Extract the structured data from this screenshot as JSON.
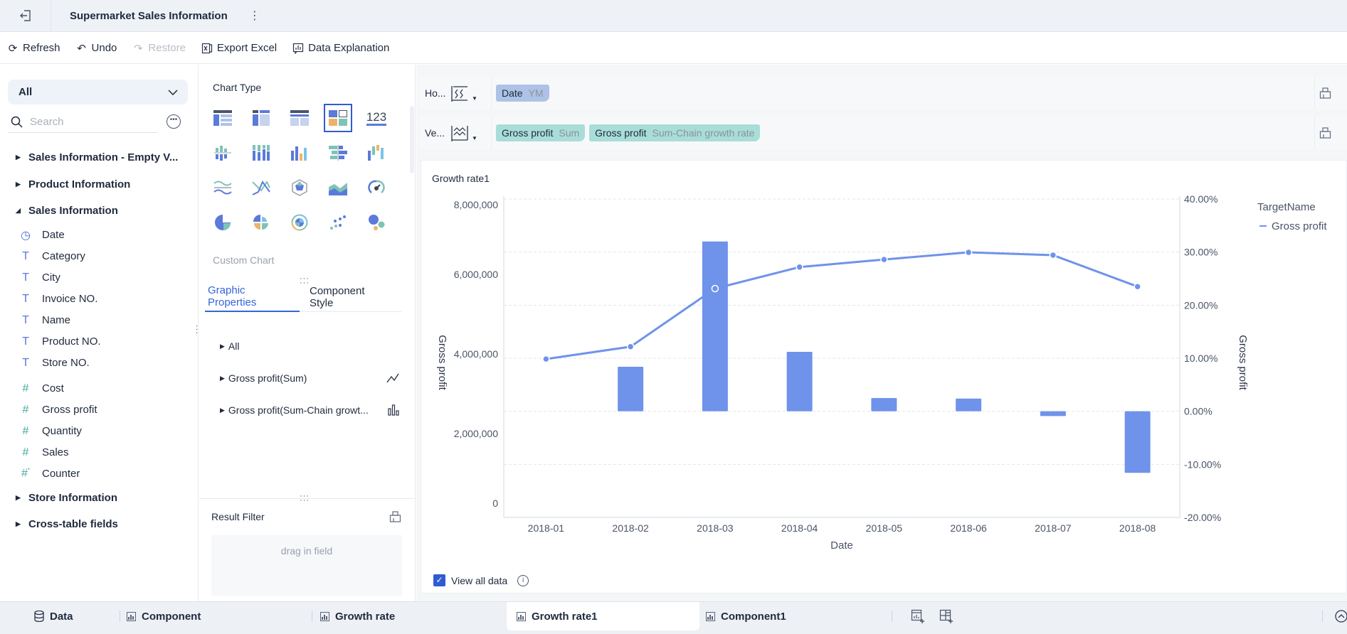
{
  "window": {
    "title": "Supermarket Sales Information"
  },
  "toolbar": {
    "refresh": "Refresh",
    "undo": "Undo",
    "restore": "Restore",
    "export_excel": "Export Excel",
    "data_explanation": "Data Explanation"
  },
  "left_panel": {
    "selector_value": "All",
    "search_placeholder": "Search",
    "groups": [
      {
        "label": "Sales Information - Empty V...",
        "expanded": false
      },
      {
        "label": "Product Information",
        "expanded": false
      },
      {
        "label": "Sales Information",
        "expanded": true
      },
      {
        "label": "Store Information",
        "expanded": false
      },
      {
        "label": "Cross-table fields",
        "expanded": false
      }
    ],
    "fields": [
      {
        "label": "Date",
        "type": "date"
      },
      {
        "label": "Category",
        "type": "text"
      },
      {
        "label": "City",
        "type": "text"
      },
      {
        "label": "Invoice NO.",
        "type": "text"
      },
      {
        "label": "Name",
        "type": "text"
      },
      {
        "label": "Product NO.",
        "type": "text"
      },
      {
        "label": "Store NO.",
        "type": "text"
      },
      {
        "label": "Cost",
        "type": "number"
      },
      {
        "label": "Gross profit",
        "type": "number"
      },
      {
        "label": "Quantity",
        "type": "number"
      },
      {
        "label": "Sales",
        "type": "number"
      },
      {
        "label": "Counter",
        "type": "counter"
      }
    ]
  },
  "chart_type_panel": {
    "title": "Chart Type",
    "number_icon_text": "123",
    "custom_chart": "Custom Chart",
    "tabs": [
      "Graphic Properties",
      "Component Style"
    ],
    "active_tab": 0,
    "properties": [
      {
        "label": "All"
      },
      {
        "label": "Gross profit(Sum)",
        "icon": "line-chart-icon"
      },
      {
        "label": "Gross profit(Sum-Chain growt...",
        "icon": "bar-chart-icon"
      }
    ],
    "result_filter": {
      "title": "Result Filter",
      "placeholder": "drag in field"
    }
  },
  "shelves": {
    "horizontal": {
      "label": "Ho...",
      "pills": [
        {
          "name": "Date",
          "sub": "YM"
        }
      ]
    },
    "vertical": {
      "label": "Ve...",
      "pills": [
        {
          "name": "Gross profit",
          "sub": "Sum"
        },
        {
          "name": "Gross profit",
          "sub": "Sum-Chain growth rate"
        }
      ]
    }
  },
  "chart_card": {
    "title": "Growth rate1",
    "view_all_data": "View all data",
    "view_all_checked": true
  },
  "chart_data": {
    "type": "combo (bar + line)",
    "title": "Growth rate1",
    "categories": [
      "2018-01",
      "2018-02",
      "2018-03",
      "2018-04",
      "2018-05",
      "2018-06",
      "2018-07",
      "2018-08"
    ],
    "xlabel": "Date",
    "ylabel_left": "Gross profit",
    "ylabel_right": "Gross profit",
    "left_axis": {
      "ticks": [
        "0",
        "2,000,000",
        "4,000,000",
        "6,000,000",
        "8,000,000"
      ],
      "range": [
        0,
        8000000
      ]
    },
    "right_axis": {
      "ticks": [
        "-20.00%",
        "-10.00%",
        "0.00%",
        "10.00%",
        "20.00%",
        "30.00%",
        "40.00%"
      ],
      "range": [
        -20,
        40
      ]
    },
    "series": [
      {
        "name": "Gross profit (Sum)",
        "type": "line",
        "axis": "left",
        "values": [
          3980000,
          4290000,
          5750000,
          6290000,
          6480000,
          6660000,
          6590000,
          5800000
        ]
      },
      {
        "name": "Gross profit (Sum-Chain growth rate)",
        "type": "bar",
        "axis": "right",
        "unit": "%",
        "values": [
          null,
          8.4,
          32.0,
          11.2,
          2.5,
          2.4,
          -0.9,
          -11.6
        ]
      }
    ],
    "legend": {
      "title": "TargetName",
      "items": [
        "Gross profit"
      ],
      "position": "right-top"
    },
    "grid": "dashed horizontal",
    "color": "#6f93ea"
  },
  "bottom_tabs": [
    {
      "label": "Data",
      "icon": "database-icon"
    },
    {
      "label": "Component",
      "icon": "chart-icon"
    },
    {
      "label": "Growth rate",
      "icon": "chart-icon"
    },
    {
      "label": "Growth rate1",
      "icon": "chart-icon",
      "active": true
    },
    {
      "label": "Component1",
      "icon": "chart-icon"
    }
  ],
  "colors": {
    "accent": "#2f5bd3",
    "series": "#6f93ea",
    "dimension_pill": "#adc2e6",
    "measure_pill": "#a9ddd8"
  }
}
